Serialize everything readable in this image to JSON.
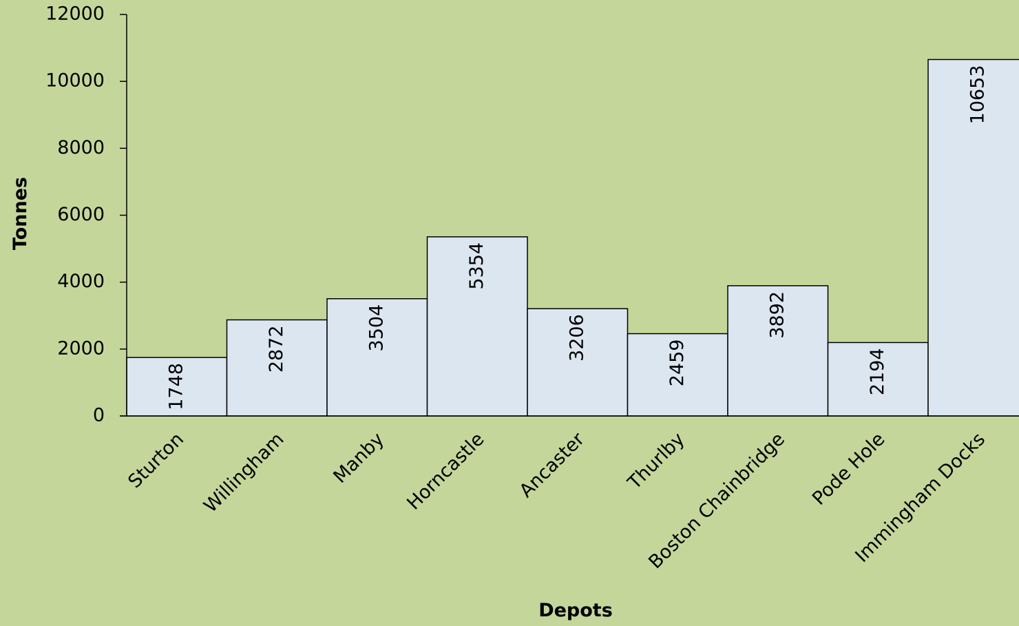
{
  "chart_data": {
    "type": "bar",
    "title": "",
    "xlabel": "Depots",
    "ylabel": "Tonnes",
    "categories": [
      "Sturton",
      "Willingham",
      "Manby",
      "Horncastle",
      "Ancaster",
      "Thurlby",
      "Boston Chainbridge",
      "Pode Hole",
      "Immingham Docks"
    ],
    "values": [
      1748,
      2872,
      3504,
      5354,
      3206,
      2459,
      3892,
      2194,
      10653
    ],
    "ylim": [
      0,
      12000
    ],
    "yticks": [
      "0",
      "2000",
      "4000",
      "6000",
      "8000",
      "10000",
      "12000"
    ],
    "grid": false,
    "legend": "none"
  },
  "colors": {
    "background": "#c5d69b",
    "bar_fill": "#dce6f1",
    "bar_stroke": "#000000",
    "axis": "#000000",
    "text": "#000000"
  }
}
